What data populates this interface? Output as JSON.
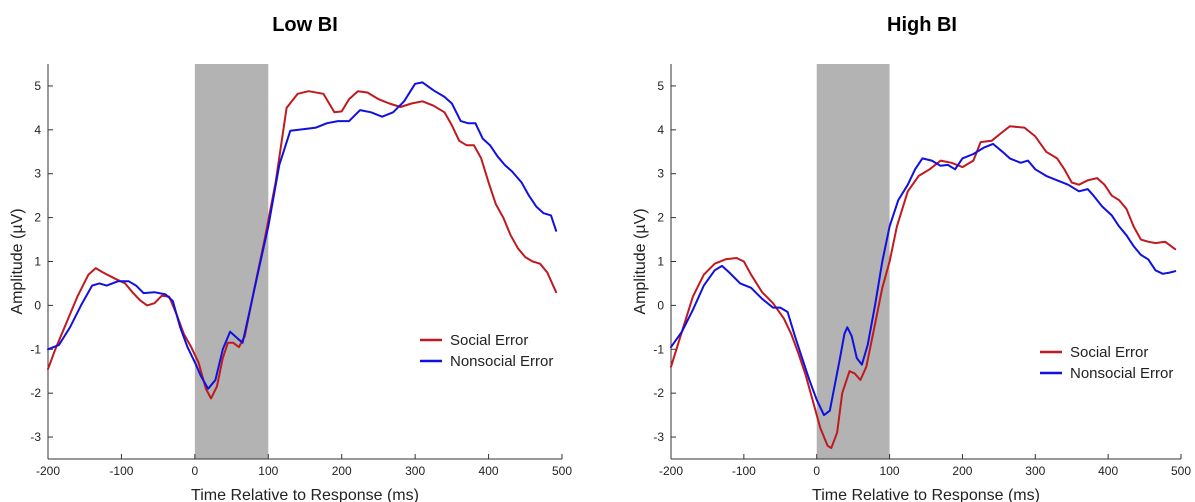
{
  "chart_data": [
    {
      "type": "line",
      "title": "Low BI",
      "xlabel": "Time Relative to Response (ms)",
      "ylabel": "Amplitude (µV)",
      "xlim": [
        -200,
        500
      ],
      "ylim": [
        -3.5,
        5.5
      ],
      "xticks": [
        -200,
        -100,
        0,
        100,
        200,
        300,
        400,
        500
      ],
      "yticks": [
        -3,
        -2,
        -1,
        0,
        1,
        2,
        3,
        4,
        5
      ],
      "shaded_region": [
        0,
        100
      ],
      "legend_position": "center-right",
      "series": [
        {
          "name": "Social Error",
          "color": "#c0191f",
          "points": [
            [
              -200,
              -1.45
            ],
            [
              -190,
              -1.0
            ],
            [
              -175,
              -0.4
            ],
            [
              -160,
              0.2
            ],
            [
              -145,
              0.7
            ],
            [
              -135,
              0.85
            ],
            [
              -125,
              0.75
            ],
            [
              -110,
              0.62
            ],
            [
              -95,
              0.5
            ],
            [
              -85,
              0.3
            ],
            [
              -75,
              0.12
            ],
            [
              -65,
              0.0
            ],
            [
              -55,
              0.05
            ],
            [
              -45,
              0.22
            ],
            [
              -35,
              0.2
            ],
            [
              -25,
              -0.2
            ],
            [
              -15,
              -0.65
            ],
            [
              -5,
              -0.95
            ],
            [
              5,
              -1.3
            ],
            [
              15,
              -1.9
            ],
            [
              22,
              -2.12
            ],
            [
              30,
              -1.85
            ],
            [
              38,
              -1.2
            ],
            [
              45,
              -0.85
            ],
            [
              52,
              -0.85
            ],
            [
              60,
              -0.95
            ],
            [
              68,
              -0.7
            ],
            [
              80,
              0.3
            ],
            [
              95,
              1.5
            ],
            [
              110,
              2.8
            ],
            [
              125,
              4.5
            ],
            [
              140,
              4.82
            ],
            [
              155,
              4.88
            ],
            [
              175,
              4.82
            ],
            [
              190,
              4.4
            ],
            [
              200,
              4.42
            ],
            [
              210,
              4.7
            ],
            [
              222,
              4.88
            ],
            [
              235,
              4.85
            ],
            [
              250,
              4.7
            ],
            [
              265,
              4.6
            ],
            [
              280,
              4.52
            ],
            [
              295,
              4.6
            ],
            [
              310,
              4.65
            ],
            [
              325,
              4.55
            ],
            [
              340,
              4.4
            ],
            [
              350,
              4.1
            ],
            [
              360,
              3.75
            ],
            [
              370,
              3.65
            ],
            [
              380,
              3.65
            ],
            [
              390,
              3.35
            ],
            [
              400,
              2.8
            ],
            [
              410,
              2.3
            ],
            [
              420,
              2.0
            ],
            [
              430,
              1.6
            ],
            [
              440,
              1.3
            ],
            [
              450,
              1.1
            ],
            [
              460,
              1.0
            ],
            [
              470,
              0.95
            ],
            [
              480,
              0.75
            ],
            [
              492,
              0.3
            ]
          ]
        },
        {
          "name": "Nonsocial Error",
          "color": "#1010e0",
          "points": [
            [
              -200,
              -1.0
            ],
            [
              -185,
              -0.9
            ],
            [
              -170,
              -0.5
            ],
            [
              -155,
              0.0
            ],
            [
              -140,
              0.45
            ],
            [
              -130,
              0.5
            ],
            [
              -120,
              0.45
            ],
            [
              -105,
              0.55
            ],
            [
              -90,
              0.55
            ],
            [
              -80,
              0.45
            ],
            [
              -70,
              0.28
            ],
            [
              -55,
              0.3
            ],
            [
              -40,
              0.25
            ],
            [
              -30,
              0.1
            ],
            [
              -20,
              -0.5
            ],
            [
              -10,
              -0.95
            ],
            [
              0,
              -1.3
            ],
            [
              8,
              -1.6
            ],
            [
              18,
              -1.9
            ],
            [
              28,
              -1.7
            ],
            [
              38,
              -1.0
            ],
            [
              48,
              -0.6
            ],
            [
              58,
              -0.75
            ],
            [
              65,
              -0.85
            ],
            [
              75,
              -0.1
            ],
            [
              88,
              0.9
            ],
            [
              100,
              1.8
            ],
            [
              115,
              3.2
            ],
            [
              130,
              3.98
            ],
            [
              150,
              4.02
            ],
            [
              165,
              4.05
            ],
            [
              180,
              4.15
            ],
            [
              195,
              4.2
            ],
            [
              210,
              4.2
            ],
            [
              225,
              4.45
            ],
            [
              240,
              4.4
            ],
            [
              255,
              4.3
            ],
            [
              270,
              4.4
            ],
            [
              285,
              4.65
            ],
            [
              300,
              5.05
            ],
            [
              310,
              5.08
            ],
            [
              325,
              4.9
            ],
            [
              340,
              4.75
            ],
            [
              350,
              4.6
            ],
            [
              362,
              4.2
            ],
            [
              372,
              4.15
            ],
            [
              382,
              4.15
            ],
            [
              392,
              3.8
            ],
            [
              402,
              3.65
            ],
            [
              412,
              3.4
            ],
            [
              422,
              3.2
            ],
            [
              432,
              3.05
            ],
            [
              445,
              2.8
            ],
            [
              455,
              2.5
            ],
            [
              465,
              2.25
            ],
            [
              475,
              2.1
            ],
            [
              485,
              2.05
            ],
            [
              492,
              1.7
            ]
          ]
        }
      ]
    },
    {
      "type": "line",
      "title": "High BI",
      "xlabel": "Time Relative to Response (ms)",
      "ylabel": "Amplitude (µV)",
      "xlim": [
        -200,
        500
      ],
      "ylim": [
        -3.5,
        5.5
      ],
      "xticks": [
        -200,
        -100,
        0,
        100,
        200,
        300,
        400,
        500
      ],
      "yticks": [
        -3,
        -2,
        -1,
        0,
        1,
        2,
        3,
        4,
        5
      ],
      "shaded_region": [
        0,
        100
      ],
      "legend_position": "bottom-right",
      "series": [
        {
          "name": "Social Error",
          "color": "#c0191f",
          "points": [
            [
              -200,
              -1.4
            ],
            [
              -185,
              -0.6
            ],
            [
              -170,
              0.2
            ],
            [
              -155,
              0.7
            ],
            [
              -140,
              0.95
            ],
            [
              -125,
              1.05
            ],
            [
              -110,
              1.08
            ],
            [
              -100,
              1.0
            ],
            [
              -90,
              0.7
            ],
            [
              -75,
              0.3
            ],
            [
              -60,
              0.05
            ],
            [
              -45,
              -0.3
            ],
            [
              -35,
              -0.65
            ],
            [
              -25,
              -1.1
            ],
            [
              -15,
              -1.6
            ],
            [
              -5,
              -2.2
            ],
            [
              5,
              -2.8
            ],
            [
              15,
              -3.2
            ],
            [
              20,
              -3.25
            ],
            [
              28,
              -2.9
            ],
            [
              35,
              -2.0
            ],
            [
              45,
              -1.5
            ],
            [
              52,
              -1.55
            ],
            [
              60,
              -1.7
            ],
            [
              68,
              -1.4
            ],
            [
              78,
              -0.6
            ],
            [
              90,
              0.4
            ],
            [
              100,
              1.0
            ],
            [
              110,
              1.8
            ],
            [
              125,
              2.6
            ],
            [
              140,
              2.95
            ],
            [
              155,
              3.1
            ],
            [
              170,
              3.3
            ],
            [
              185,
              3.25
            ],
            [
              200,
              3.15
            ],
            [
              215,
              3.3
            ],
            [
              225,
              3.72
            ],
            [
              240,
              3.75
            ],
            [
              255,
              3.95
            ],
            [
              265,
              4.08
            ],
            [
              285,
              4.05
            ],
            [
              300,
              3.85
            ],
            [
              315,
              3.5
            ],
            [
              330,
              3.35
            ],
            [
              340,
              3.1
            ],
            [
              350,
              2.8
            ],
            [
              360,
              2.75
            ],
            [
              372,
              2.85
            ],
            [
              385,
              2.9
            ],
            [
              395,
              2.75
            ],
            [
              405,
              2.5
            ],
            [
              415,
              2.4
            ],
            [
              425,
              2.2
            ],
            [
              435,
              1.8
            ],
            [
              445,
              1.5
            ],
            [
              455,
              1.45
            ],
            [
              465,
              1.42
            ],
            [
              478,
              1.45
            ],
            [
              492,
              1.28
            ]
          ]
        },
        {
          "name": "Nonsocial Error",
          "color": "#1010e0",
          "points": [
            [
              -200,
              -0.95
            ],
            [
              -185,
              -0.6
            ],
            [
              -170,
              -0.1
            ],
            [
              -155,
              0.45
            ],
            [
              -140,
              0.8
            ],
            [
              -130,
              0.9
            ],
            [
              -120,
              0.75
            ],
            [
              -105,
              0.5
            ],
            [
              -90,
              0.4
            ],
            [
              -75,
              0.15
            ],
            [
              -60,
              -0.05
            ],
            [
              -50,
              -0.05
            ],
            [
              -40,
              -0.15
            ],
            [
              -30,
              -0.7
            ],
            [
              -20,
              -1.2
            ],
            [
              -10,
              -1.7
            ],
            [
              0,
              -2.15
            ],
            [
              10,
              -2.5
            ],
            [
              18,
              -2.4
            ],
            [
              25,
              -1.8
            ],
            [
              32,
              -1.2
            ],
            [
              38,
              -0.65
            ],
            [
              42,
              -0.5
            ],
            [
              48,
              -0.7
            ],
            [
              55,
              -1.2
            ],
            [
              62,
              -1.35
            ],
            [
              70,
              -0.9
            ],
            [
              80,
              0.0
            ],
            [
              90,
              1.0
            ],
            [
              100,
              1.8
            ],
            [
              112,
              2.4
            ],
            [
              125,
              2.75
            ],
            [
              135,
              3.1
            ],
            [
              145,
              3.35
            ],
            [
              158,
              3.3
            ],
            [
              170,
              3.18
            ],
            [
              180,
              3.2
            ],
            [
              190,
              3.1
            ],
            [
              200,
              3.35
            ],
            [
              215,
              3.45
            ],
            [
              230,
              3.6
            ],
            [
              242,
              3.68
            ],
            [
              255,
              3.5
            ],
            [
              265,
              3.35
            ],
            [
              280,
              3.25
            ],
            [
              290,
              3.3
            ],
            [
              300,
              3.1
            ],
            [
              315,
              2.95
            ],
            [
              330,
              2.85
            ],
            [
              345,
              2.75
            ],
            [
              360,
              2.6
            ],
            [
              372,
              2.65
            ],
            [
              380,
              2.5
            ],
            [
              392,
              2.25
            ],
            [
              405,
              2.05
            ],
            [
              415,
              1.8
            ],
            [
              425,
              1.6
            ],
            [
              435,
              1.35
            ],
            [
              445,
              1.15
            ],
            [
              455,
              1.05
            ],
            [
              465,
              0.8
            ],
            [
              475,
              0.72
            ],
            [
              485,
              0.75
            ],
            [
              492,
              0.78
            ]
          ]
        }
      ]
    }
  ]
}
